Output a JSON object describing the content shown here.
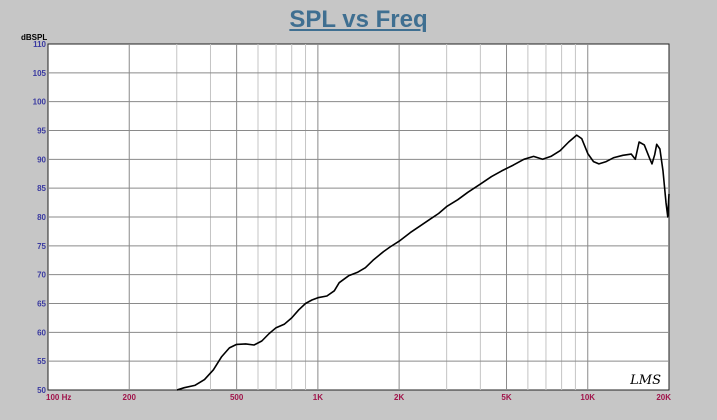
{
  "chart_data": {
    "type": "line",
    "title": "SPL vs Freq",
    "ylabel": "dBSPL",
    "xlim": [
      100,
      20000
    ],
    "ylim": [
      50,
      110
    ],
    "xscale": "log",
    "grid": true,
    "y_ticks": [
      "50",
      "55",
      "60",
      "65",
      "70",
      "75",
      "80",
      "85",
      "90",
      "95",
      "100",
      "105",
      "110"
    ],
    "x_ticks": [
      {
        "value": 100,
        "label": "100 Hz"
      },
      {
        "value": 200,
        "label": "200"
      },
      {
        "value": 500,
        "label": "500"
      },
      {
        "value": 1000,
        "label": "1K"
      },
      {
        "value": 2000,
        "label": "2K"
      },
      {
        "value": 5000,
        "label": "5K"
      },
      {
        "value": 10000,
        "label": "10K"
      },
      {
        "value": 20000,
        "label": "20K"
      }
    ],
    "series": [
      {
        "color": "#000000",
        "points": [
          [
            300,
            50
          ],
          [
            320,
            50.4
          ],
          [
            350,
            50.8
          ],
          [
            380,
            51.8
          ],
          [
            410,
            53.5
          ],
          [
            440,
            55.8
          ],
          [
            470,
            57.3
          ],
          [
            500,
            57.9
          ],
          [
            540,
            58.0
          ],
          [
            580,
            57.8
          ],
          [
            620,
            58.5
          ],
          [
            660,
            59.8
          ],
          [
            700,
            60.8
          ],
          [
            750,
            61.4
          ],
          [
            800,
            62.5
          ],
          [
            850,
            63.9
          ],
          [
            900,
            65.0
          ],
          [
            950,
            65.6
          ],
          [
            1000,
            66.0
          ],
          [
            1080,
            66.3
          ],
          [
            1150,
            67.2
          ],
          [
            1200,
            68.6
          ],
          [
            1300,
            69.8
          ],
          [
            1400,
            70.4
          ],
          [
            1500,
            71.2
          ],
          [
            1600,
            72.5
          ],
          [
            1750,
            74.0
          ],
          [
            1850,
            74.8
          ],
          [
            2000,
            75.8
          ],
          [
            2200,
            77.3
          ],
          [
            2400,
            78.5
          ],
          [
            2600,
            79.6
          ],
          [
            2800,
            80.6
          ],
          [
            3000,
            81.8
          ],
          [
            3300,
            83.0
          ],
          [
            3600,
            84.3
          ],
          [
            4000,
            85.7
          ],
          [
            4400,
            87.0
          ],
          [
            4800,
            88.0
          ],
          [
            5300,
            89.0
          ],
          [
            5800,
            90.0
          ],
          [
            6300,
            90.5
          ],
          [
            6800,
            90.0
          ],
          [
            7300,
            90.5
          ],
          [
            7900,
            91.5
          ],
          [
            8500,
            93.0
          ],
          [
            9100,
            94.2
          ],
          [
            9500,
            93.6
          ],
          [
            10000,
            91.0
          ],
          [
            10500,
            89.6
          ],
          [
            11000,
            89.2
          ],
          [
            11700,
            89.6
          ],
          [
            12500,
            90.3
          ],
          [
            13500,
            90.7
          ],
          [
            14500,
            90.9
          ],
          [
            15000,
            90.0
          ],
          [
            15500,
            93.0
          ],
          [
            16200,
            92.5
          ],
          [
            17000,
            90.0
          ],
          [
            17300,
            89.2
          ],
          [
            17700,
            90.8
          ],
          [
            18000,
            92.6
          ],
          [
            18500,
            91.8
          ],
          [
            19000,
            88.0
          ],
          [
            19500,
            82.5
          ],
          [
            19800,
            80.0
          ],
          [
            20000,
            84.0
          ]
        ]
      }
    ]
  },
  "watermark": "LMS"
}
